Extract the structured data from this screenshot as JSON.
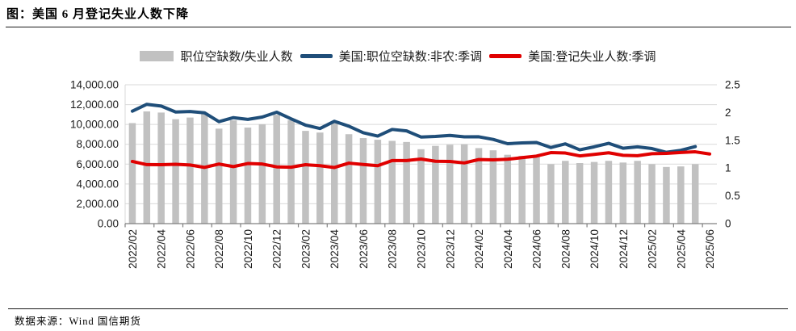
{
  "page": {
    "title": "图：美国 6 月登记失业人数下降",
    "source": "数据来源：Wind  国信期货"
  },
  "legend": [
    {
      "label": "职位空缺数/失业人数",
      "type": "bar",
      "color": "#c1c1c1"
    },
    {
      "label": "美国:职位空缺数:非农:季调",
      "type": "line",
      "color": "#1f4e79"
    },
    {
      "label": "美国:登记失业人数:季调",
      "type": "line",
      "color": "#e00000"
    }
  ],
  "chart_data": {
    "type": "bar+line combo",
    "x": [
      "2022/02",
      "2022/03",
      "2022/04",
      "2022/05",
      "2022/06",
      "2022/07",
      "2022/08",
      "2022/09",
      "2022/10",
      "2022/11",
      "2022/12",
      "2023/01",
      "2023/02",
      "2023/03",
      "2023/04",
      "2023/05",
      "2023/06",
      "2023/07",
      "2023/08",
      "2023/09",
      "2023/10",
      "2023/11",
      "2023/12",
      "2024/01",
      "2024/02",
      "2024/03",
      "2024/04",
      "2024/05",
      "2024/06",
      "2024/07",
      "2024/08",
      "2024/09",
      "2024/10",
      "2024/11",
      "2024/12",
      "2025/01",
      "2025/02",
      "2025/03",
      "2025/04",
      "2025/05",
      "2025/06"
    ],
    "x_tick_labels": [
      "2022/02",
      "2022/04",
      "2022/06",
      "2022/08",
      "2022/10",
      "2022/12",
      "2023/02",
      "2023/04",
      "2023/06",
      "2023/08",
      "2023/10",
      "2023/12",
      "2024/02",
      "2024/04",
      "2024/06",
      "2024/08",
      "2024/10",
      "2024/12",
      "2025/02",
      "2025/04",
      "2025/06"
    ],
    "series": [
      {
        "name": "职位空缺数/失业人数",
        "type": "bar",
        "axis": "right",
        "color": "#c1c1c1",
        "values": [
          1.81,
          2.02,
          2.0,
          1.88,
          1.91,
          1.97,
          1.71,
          1.86,
          1.73,
          1.79,
          1.96,
          1.86,
          1.67,
          1.64,
          1.82,
          1.61,
          1.54,
          1.51,
          1.49,
          1.47,
          1.34,
          1.4,
          1.42,
          1.43,
          1.36,
          1.32,
          1.24,
          1.22,
          1.2,
          1.07,
          1.13,
          1.09,
          1.11,
          1.13,
          1.1,
          1.13,
          1.07,
          1.02,
          1.03,
          1.07
        ]
      },
      {
        "name": "美国:职位空缺数:非农:季调",
        "type": "line",
        "axis": "left",
        "color": "#1f4e79",
        "values": [
          11344,
          12027,
          11855,
          11254,
          11303,
          11170,
          10280,
          10687,
          10512,
          10746,
          11234,
          10563,
          9931,
          9590,
          10320,
          9824,
          9165,
          8827,
          9497,
          9350,
          8733,
          8790,
          8889,
          8748,
          8756,
          8488,
          8059,
          8140,
          8184,
          7673,
          8040,
          7443,
          7744,
          8098,
          7600,
          7740,
          7568,
          7192,
          7391,
          7769
        ]
      },
      {
        "name": "美国:登记失业人数:季调",
        "type": "line",
        "axis": "left",
        "color": "#e00000",
        "values": [
          6270,
          5950,
          5940,
          5980,
          5910,
          5670,
          6010,
          5750,
          6060,
          6010,
          5720,
          5690,
          5940,
          5840,
          5660,
          6100,
          5960,
          5840,
          6360,
          6360,
          6510,
          6290,
          6270,
          6120,
          6460,
          6430,
          6490,
          6650,
          6810,
          7160,
          7120,
          6830,
          6980,
          7140,
          6890,
          6850,
          7050,
          7080,
          7170,
          7240,
          7020
        ]
      }
    ],
    "left_axis": {
      "min": 0,
      "max": 14000,
      "step": 2000,
      "tick_labels": [
        "0.00",
        "2,000.00",
        "4,000.00",
        "6,000.00",
        "8,000.00",
        "10,000.00",
        "12,000.00",
        "14,000.00"
      ]
    },
    "right_axis": {
      "min": 0,
      "max": 2.5,
      "step": 0.5,
      "tick_labels": [
        "0",
        "0.5",
        "1",
        "1.5",
        "2",
        "2.5"
      ]
    },
    "grid": true,
    "legend_position": "top",
    "colors": {
      "grid": "#d9d9d9",
      "axis": "#808080",
      "tick_text": "#1a1a1a"
    }
  }
}
